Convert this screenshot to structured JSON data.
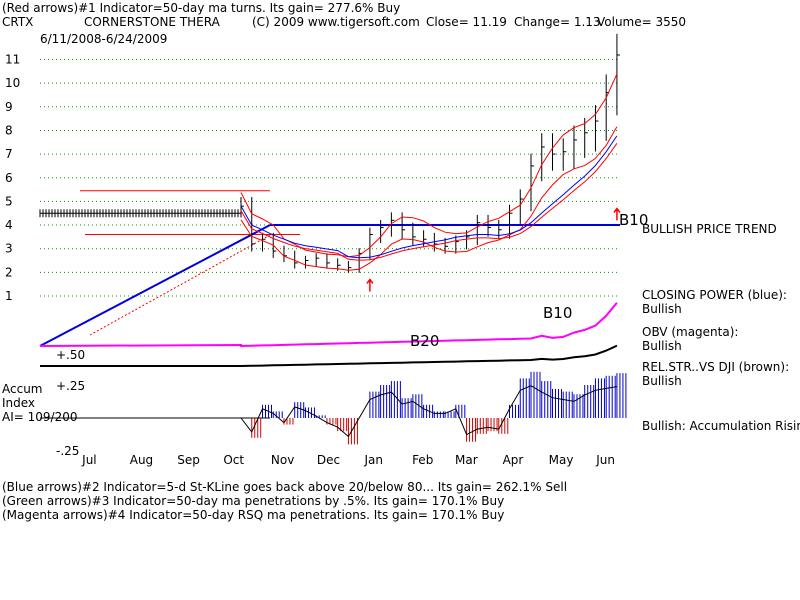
{
  "header": {
    "line1": "(Red arrows)#1 Indicator=50-day ma turns.  Its gain= 277.6% Buy",
    "symbol": "CRTX",
    "company": "CORNERSTONE THERA",
    "copyright": "(C) 2009 www.tigersoft.com",
    "close": "Close=  11.19",
    "change": "Change= 1.13",
    "volume": "Volume= 3550",
    "date_range": "6/11/2008-6/24/2009"
  },
  "footer": {
    "line1": "(Blue arrows)#2 Indicator=5-d St-KLine goes back above 20/below 80... Its gain= 262.1% Sell",
    "line2": "(Green arrows)#3 Indicator=50-day ma penetrations by .5%. Its gain= 170.1% Buy",
    "line3": "(Magenta arrows)#4 Indicator=50-day RSQ ma penetrations. Its gain= 170.1% Buy"
  },
  "annotations": {
    "b10_price": "B10",
    "b10_cp": "B10",
    "b20": "B20",
    "bullish_price_trend": "BULLISH PRICE TREND",
    "closing_power_title": "CLOSING POWER (blue):",
    "closing_power_value": "Bullish",
    "obv_title": "OBV (magenta):",
    "obv_value": "Bullish",
    "relstr_title": "REL.STR..VS DJI (brown):",
    "relstr_value": "Bullish",
    "accum_status": "Bullish: Accumulation Rising",
    "accum_label1": "Accum",
    "accum_label2": "Index",
    "accum_label3": "AI= 109/200",
    "accum_tick_hi": "+.50",
    "accum_tick_mid": "+.25",
    "accum_tick_lo": "-.25"
  },
  "colors": {
    "price": "#000000",
    "ma_red": "#ff0000",
    "ma_blue": "#0000ff",
    "trend_blue": "#0000dd",
    "closing_power": "#ff00ff",
    "accum_pos": "#0000cc",
    "accum_neg": "#cc0000",
    "grid": "#009900"
  },
  "chart_data": {
    "type": "line",
    "title": "CORNERSTONE THERA",
    "xlabel": "",
    "ylabel": "",
    "ylim": [
      1,
      11
    ],
    "y_ticks": [
      "11",
      "10",
      "9",
      "8",
      "7",
      "6",
      "5",
      "4",
      "3",
      "2",
      "1"
    ],
    "month_labels": [
      "Jul",
      "Aug",
      "Sep",
      "Oct",
      "Nov",
      "Dec",
      "Jan",
      "Feb",
      "Mar",
      "Apr",
      "May",
      "Jun"
    ],
    "grid": "horizontal dotted",
    "price_series": {
      "name": "CRTX",
      "x": [
        "2008-10-20",
        "2008-10-27",
        "2008-11-03",
        "2008-11-10",
        "2008-11-17",
        "2008-11-24",
        "2008-12-01",
        "2008-12-08",
        "2008-12-15",
        "2008-12-22",
        "2008-12-29",
        "2009-01-05",
        "2009-01-12",
        "2009-01-19",
        "2009-01-26",
        "2009-02-02",
        "2009-02-09",
        "2009-02-16",
        "2009-02-23",
        "2009-03-02",
        "2009-03-09",
        "2009-03-16",
        "2009-03-23",
        "2009-03-30",
        "2009-04-06",
        "2009-04-13",
        "2009-04-20",
        "2009-04-27",
        "2009-05-04",
        "2009-05-11",
        "2009-05-18",
        "2009-05-25",
        "2009-06-01",
        "2009-06-08",
        "2009-06-15",
        "2009-06-22"
      ],
      "close": [
        4.8,
        3.2,
        3.4,
        2.9,
        2.7,
        2.4,
        2.5,
        2.6,
        2.4,
        2.3,
        2.2,
        2.8,
        3.6,
        3.9,
        4.2,
        3.8,
        3.5,
        3.4,
        3.2,
        3.1,
        3.3,
        3.5,
        4.1,
        3.9,
        3.8,
        4.5,
        5.1,
        6.5,
        7.3,
        7.0,
        7.1,
        7.6,
        7.9,
        8.4,
        9.6,
        11.19
      ]
    },
    "flat_period": {
      "name": "pre-listing",
      "from": "2008-06-11",
      "to": "2008-10-20",
      "value": 4.5
    },
    "horizontal_levels": [
      {
        "name": "resistance",
        "value": 4.0
      },
      {
        "name": "upper",
        "value": 5.45
      },
      {
        "name": "lower",
        "value": 3.6
      }
    ],
    "accum_index": {
      "ylim": [
        -0.3,
        0.55
      ],
      "values": [
        0.0,
        -0.15,
        0.1,
        0.05,
        -0.05,
        0.12,
        0.08,
        0.02,
        -0.05,
        -0.1,
        -0.2,
        0.0,
        0.2,
        0.25,
        0.28,
        0.15,
        0.18,
        0.1,
        0.05,
        0.05,
        0.1,
        -0.18,
        -0.12,
        -0.1,
        -0.12,
        0.1,
        0.3,
        0.35,
        0.28,
        0.22,
        0.2,
        0.18,
        0.25,
        0.3,
        0.32,
        0.34
      ]
    }
  }
}
